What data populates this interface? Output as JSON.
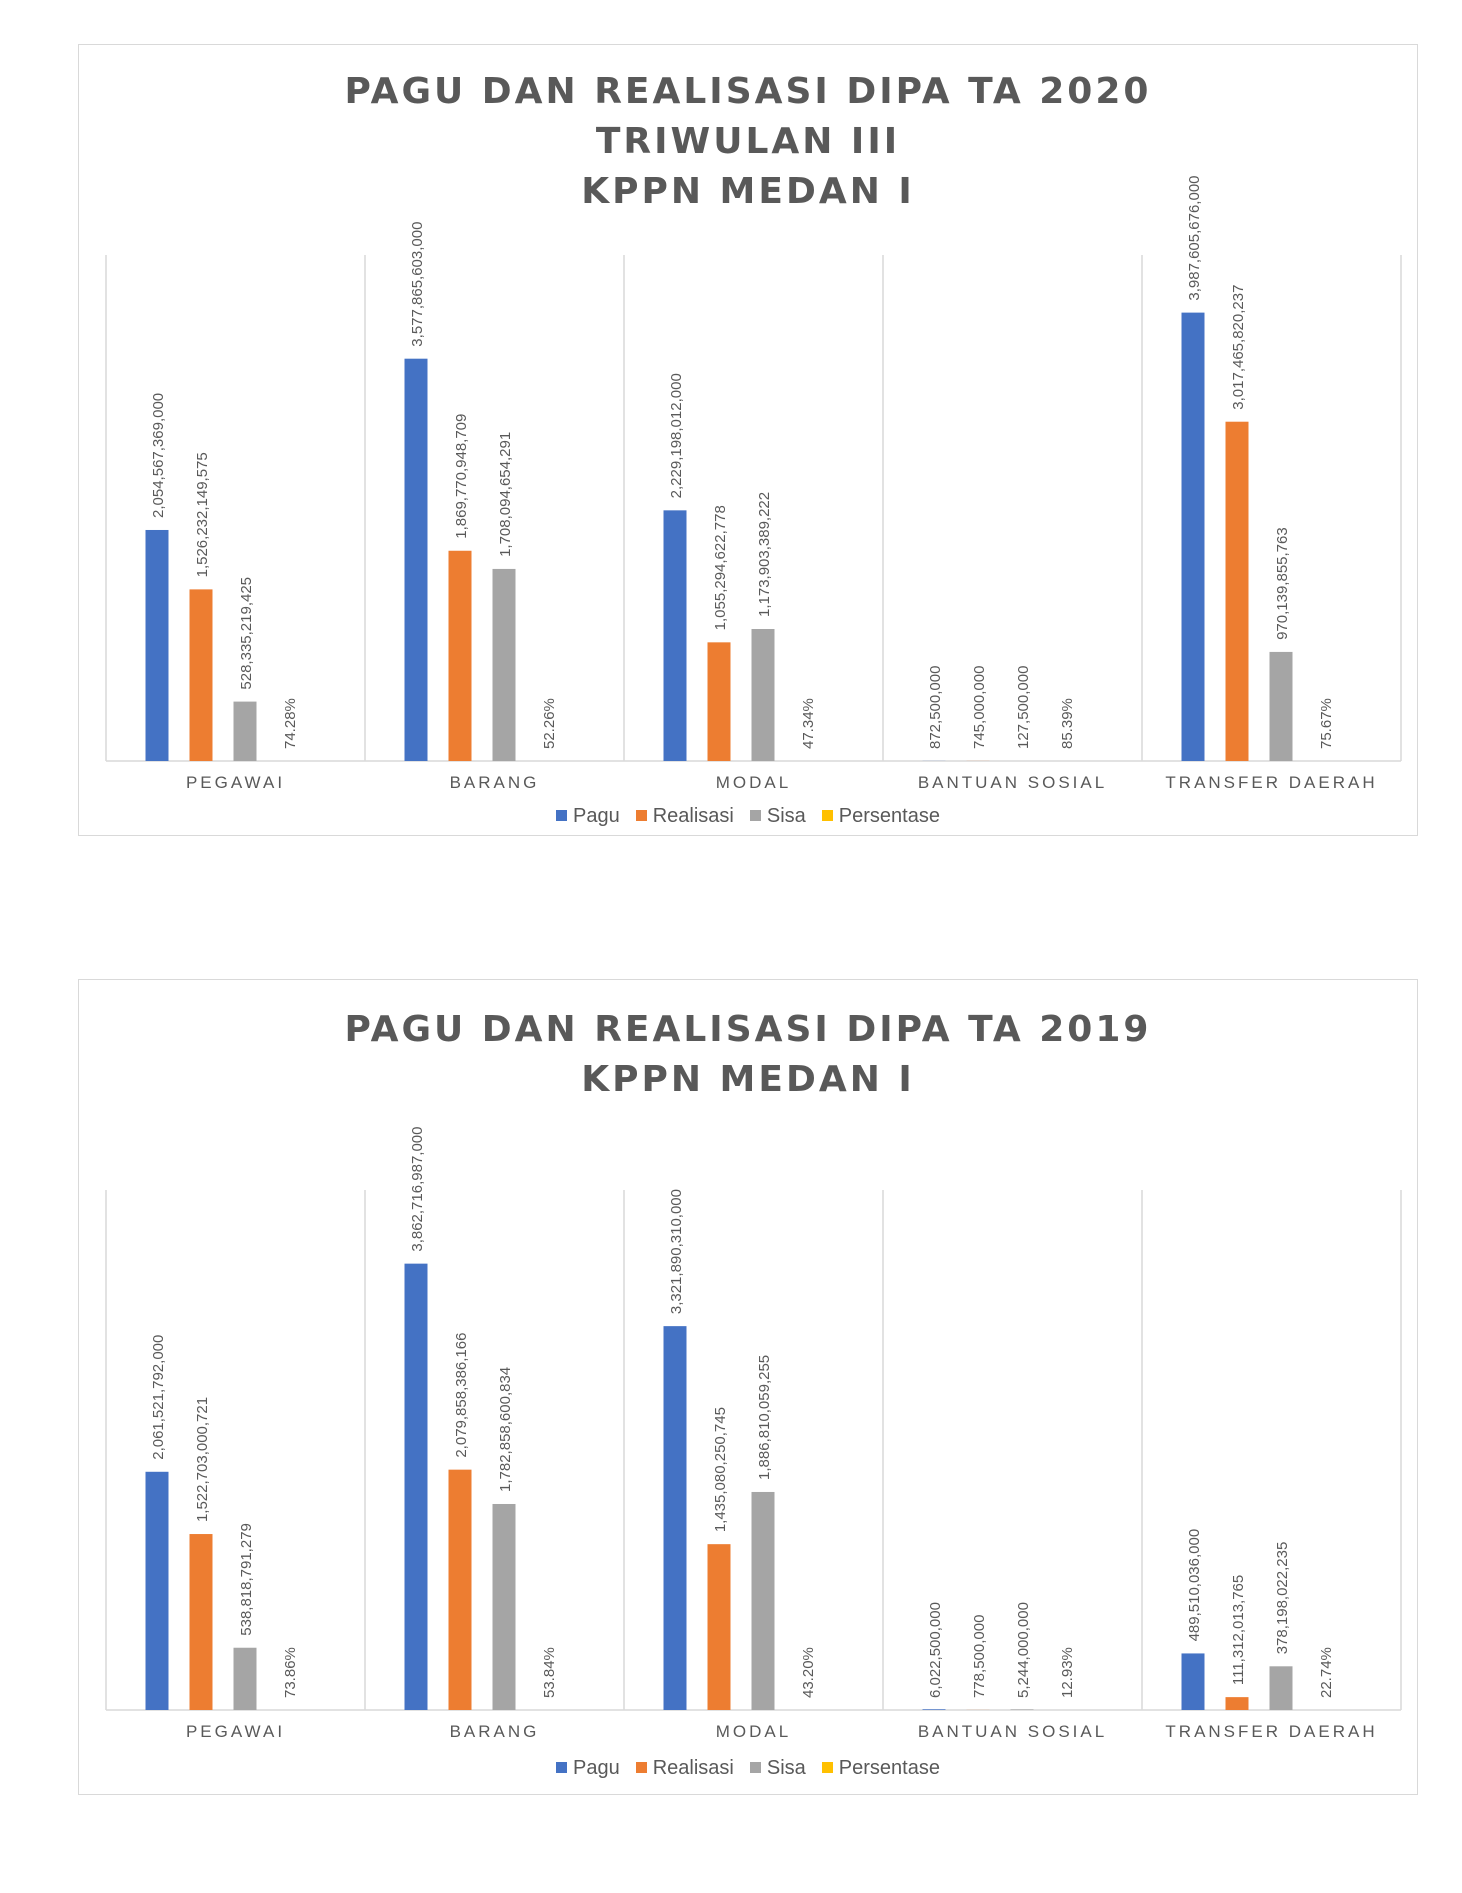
{
  "chart_data": [
    {
      "type": "bar",
      "title": [
        "PAGU DAN REALISASI DIPA TA 2020",
        "TRIWULAN III",
        "KPPN MEDAN I"
      ],
      "categories": [
        "PEGAWAI",
        "BARANG",
        "MODAL",
        "BANTUAN SOSIAL",
        "TRANSFER DAERAH"
      ],
      "series": [
        {
          "name": "Pagu",
          "color": "#4472c4",
          "values": [
            2054567369000,
            3577865603000,
            2229198012000,
            872500000,
            3987605676000
          ],
          "labels": [
            "2,054,567,369,000",
            "3,577,865,603,000",
            "2,229,198,012,000",
            "872,500,000",
            "3,987,605,676,000"
          ]
        },
        {
          "name": "Realisasi",
          "color": "#ed7d31",
          "values": [
            1526232149575,
            1869770948709,
            1055294622778,
            745000000,
            3017465820237
          ],
          "labels": [
            "1,526,232,149,575",
            "1,869,770,948,709",
            "1,055,294,622,778",
            "745,000,000",
            "3,017,465,820,237"
          ]
        },
        {
          "name": "Sisa",
          "color": "#a5a5a5",
          "values": [
            528335219425,
            1708094654291,
            1173903389222,
            127500000,
            970139855763
          ],
          "labels": [
            "528,335,219,425",
            "1,708,094,654,291",
            "1,173,903,389,222",
            "127,500,000",
            "970,139,855,763"
          ]
        },
        {
          "name": "Persentase",
          "color": "#ffc000",
          "values": [
            74.28,
            52.26,
            47.34,
            85.39,
            75.67
          ],
          "labels": [
            "74.28%",
            "52.26%",
            "47.34%",
            "85.39%",
            "75.67%"
          ]
        }
      ],
      "ylim": [
        0,
        4500000000000
      ],
      "legend": "bottom",
      "grid": false
    },
    {
      "type": "bar",
      "title": [
        "PAGU DAN REALISASI DIPA TA 2019",
        "KPPN MEDAN I"
      ],
      "categories": [
        "PEGAWAI",
        "BARANG",
        "MODAL",
        "BANTUAN SOSIAL",
        "TRANSFER DAERAH"
      ],
      "series": [
        {
          "name": "Pagu",
          "color": "#4472c4",
          "values": [
            2061521792000,
            3862716987000,
            3321890310000,
            6022500000,
            489510036000
          ],
          "labels": [
            "2,061,521,792,000",
            "3,862,716,987,000",
            "3,321,890,310,000",
            "6,022,500,000",
            "489,510,036,000"
          ]
        },
        {
          "name": "Realisasi",
          "color": "#ed7d31",
          "values": [
            1522703000721,
            2079858386166,
            1435080250745,
            778500000,
            111312013765
          ],
          "labels": [
            "1,522,703,000,721",
            "2,079,858,386,166",
            "1,435,080,250,745",
            "778,500,000",
            "111,312,013,765"
          ]
        },
        {
          "name": "Sisa",
          "color": "#a5a5a5",
          "values": [
            538818791279,
            1782858600834,
            1886810059255,
            5244000000,
            378198022235
          ],
          "labels": [
            "538,818,791,279",
            "1,782,858,600,834",
            "1,886,810,059,255",
            "5,244,000,000",
            "378,198,022,235"
          ]
        },
        {
          "name": "Persentase",
          "color": "#ffc000",
          "values": [
            73.86,
            53.84,
            43.2,
            12.93,
            22.74
          ],
          "labels": [
            "73.86%",
            "53.84%",
            "43.20%",
            "12.93%",
            "22.74%"
          ]
        }
      ],
      "ylim": [
        0,
        4500000000000
      ],
      "legend": "bottom",
      "grid": false
    }
  ]
}
